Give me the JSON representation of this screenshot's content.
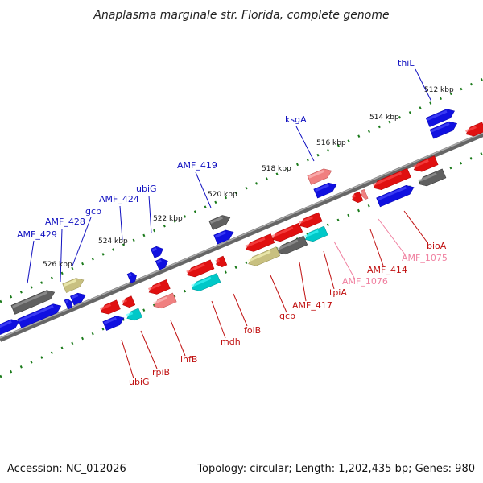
{
  "title": "Anaplasma marginale str. Florida, complete genome",
  "footer": {
    "accession": "Accession: NC_012026",
    "topology": "Topology: circular; Length: 1,202,435 bp; Genes: 980"
  },
  "scale_labels": [
    "512 kbp",
    "514 kbp",
    "516 kbp",
    "518 kbp",
    "520 kbp",
    "522 kbp",
    "524 kbp",
    "526 kbp"
  ],
  "top_labels": [
    "thiL",
    "ksgA",
    "AMF_419",
    "ubiG",
    "AMF_424",
    "gcp",
    "AMF_428",
    "AMF_429"
  ],
  "bottom_labels": [
    "bioA",
    "AMF_1075",
    "AMF_414",
    "AMF_1076",
    "tpiA",
    "AMF_417",
    "gcp",
    "folB",
    "mdh",
    "infB",
    "rpiB",
    "ubiG"
  ],
  "colors": {
    "forward": "#1010e0",
    "reverse": "#e01010",
    "pseudo": "#f08080",
    "rna": "#00c8c8",
    "hypothetical": "#606060",
    "other": "#c8c080",
    "pseudo_label": "#f080a0"
  }
}
